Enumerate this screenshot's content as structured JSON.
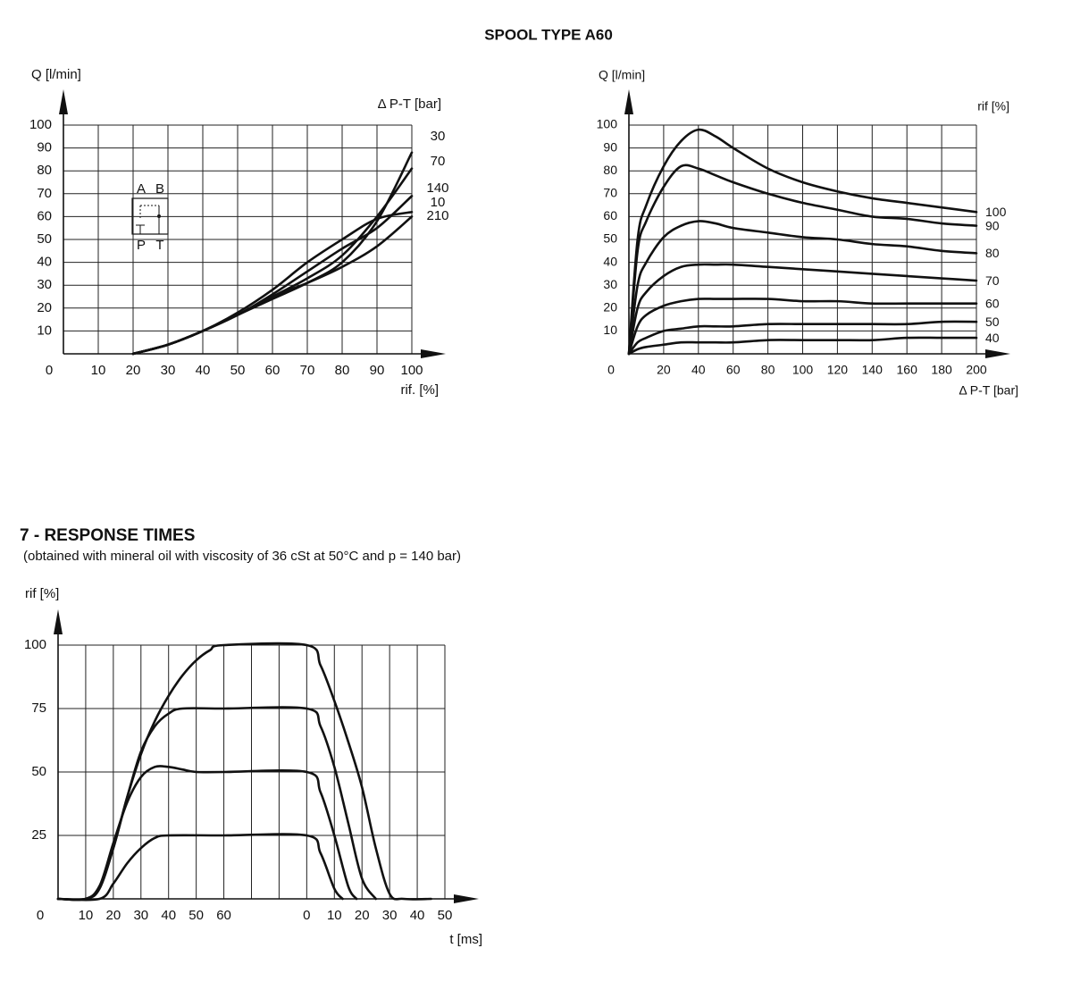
{
  "page": {
    "title": "SPOOL TYPE A60"
  },
  "chart_data": [
    {
      "type": "line",
      "y_label": "Q [l/min]",
      "x_label": "rif. [%]",
      "legend_title": "Δ P-T [bar]",
      "symbol_labels": [
        "A",
        "B",
        "P",
        "T"
      ],
      "xlim": [
        0,
        100
      ],
      "ylim": [
        0,
        100
      ],
      "xticks": [
        0,
        10,
        20,
        30,
        40,
        50,
        60,
        70,
        80,
        90,
        100
      ],
      "yticks": [
        10,
        20,
        30,
        40,
        50,
        60,
        70,
        80,
        90,
        100
      ],
      "grid": true,
      "x": [
        20,
        30,
        40,
        50,
        60,
        70,
        80,
        90,
        100
      ],
      "series": [
        {
          "name": "30",
          "color": "#111111",
          "values": [
            0,
            4,
            10,
            17,
            24,
            31,
            40,
            58,
            88
          ]
        },
        {
          "name": "70",
          "color": "#111111",
          "values": [
            0,
            4,
            10,
            17,
            25,
            33,
            43,
            60,
            81
          ]
        },
        {
          "name": "140",
          "color": "#111111",
          "values": [
            0,
            4,
            10,
            17,
            26,
            36,
            46,
            55,
            69
          ]
        },
        {
          "name": "10",
          "color": "#111111",
          "values": [
            0,
            4,
            10,
            18,
            28,
            40,
            50,
            59,
            62
          ]
        },
        {
          "name": "210",
          "color": "#111111",
          "values": [
            0,
            4,
            10,
            17,
            25,
            31,
            38,
            47,
            60
          ]
        }
      ]
    },
    {
      "type": "line",
      "y_label": "Q [l/min]",
      "x_label": "Δ P-T [bar]",
      "legend_title": "rif [%]",
      "xlim": [
        0,
        200
      ],
      "ylim": [
        0,
        100
      ],
      "xticks": [
        0,
        20,
        40,
        60,
        80,
        100,
        120,
        140,
        160,
        180,
        200
      ],
      "yticks": [
        10,
        20,
        30,
        40,
        50,
        60,
        70,
        80,
        90,
        100
      ],
      "grid": true,
      "x": [
        0,
        5,
        10,
        20,
        30,
        40,
        50,
        60,
        80,
        100,
        120,
        140,
        160,
        180,
        200
      ],
      "series": [
        {
          "name": "100",
          "color": "#111111",
          "values": [
            0,
            50,
            65,
            82,
            93,
            98,
            95,
            90,
            81,
            75,
            71,
            68,
            66,
            64,
            62
          ]
        },
        {
          "name": "90",
          "color": "#111111",
          "values": [
            0,
            45,
            58,
            73,
            82,
            81,
            78,
            75,
            70,
            66,
            63,
            60,
            59,
            57,
            56
          ]
        },
        {
          "name": "80",
          "color": "#111111",
          "values": [
            0,
            30,
            40,
            51,
            56,
            58,
            57,
            55,
            53,
            51,
            50,
            48,
            47,
            45,
            44
          ]
        },
        {
          "name": "70",
          "color": "#111111",
          "values": [
            0,
            20,
            27,
            34,
            38,
            39,
            39,
            39,
            38,
            37,
            36,
            35,
            34,
            33,
            32
          ]
        },
        {
          "name": "60",
          "color": "#111111",
          "values": [
            0,
            12,
            17,
            21,
            23,
            24,
            24,
            24,
            24,
            23,
            23,
            22,
            22,
            22,
            22
          ]
        },
        {
          "name": "50",
          "color": "#111111",
          "values": [
            0,
            5,
            7,
            10,
            11,
            12,
            12,
            12,
            13,
            13,
            13,
            13,
            13,
            14,
            14
          ]
        },
        {
          "name": "40",
          "color": "#111111",
          "values": [
            0,
            2,
            3,
            4,
            5,
            5,
            5,
            5,
            6,
            6,
            6,
            6,
            7,
            7,
            7
          ]
        }
      ]
    },
    {
      "type": "line",
      "title": "7 - RESPONSE TIMES",
      "subtitle": "(obtained with mineral oil with viscosity of 36 cSt at 50°C and p = 140 bar)",
      "y_label": "rif [%]",
      "x_label": "t [ms]",
      "xlim": [
        0,
        140
      ],
      "ylim": [
        0,
        100
      ],
      "xticks": [
        0,
        10,
        20,
        30,
        40,
        50,
        60,
        {
          "value": 90,
          "label": "0"
        },
        {
          "value": 100,
          "label": "10"
        },
        {
          "value": 110,
          "label": "20"
        },
        {
          "value": 120,
          "label": "30"
        },
        {
          "value": 130,
          "label": "40"
        },
        {
          "value": 140,
          "label": "50"
        }
      ],
      "yticks": [
        25,
        50,
        75,
        100
      ],
      "grid": true,
      "series": [
        {
          "color": "#111111",
          "x": [
            0,
            10,
            15,
            20,
            25,
            30,
            35,
            40,
            45,
            50,
            55,
            60,
            90,
            95,
            100,
            105,
            110,
            115,
            120,
            125,
            135
          ],
          "values": [
            0,
            0,
            5,
            20,
            40,
            57,
            70,
            80,
            88,
            94,
            98,
            100,
            100,
            92,
            78,
            62,
            44,
            20,
            2,
            0,
            0
          ]
        },
        {
          "color": "#111111",
          "x": [
            0,
            10,
            15,
            20,
            25,
            30,
            35,
            40,
            45,
            60,
            90,
            95,
            100,
            105,
            110,
            115
          ],
          "values": [
            0,
            0,
            4,
            20,
            40,
            58,
            68,
            73,
            75,
            75,
            75,
            68,
            52,
            30,
            8,
            0
          ]
        },
        {
          "color": "#111111",
          "x": [
            0,
            10,
            15,
            20,
            25,
            30,
            35,
            40,
            45,
            50,
            60,
            90,
            95,
            100,
            105,
            108
          ],
          "values": [
            0,
            0,
            5,
            22,
            38,
            48,
            52,
            52,
            51,
            50,
            50,
            50,
            42,
            25,
            5,
            0
          ]
        },
        {
          "color": "#111111",
          "x": [
            0,
            15,
            20,
            25,
            30,
            35,
            40,
            60,
            90,
            95,
            100,
            103
          ],
          "values": [
            0,
            0,
            6,
            14,
            20,
            24,
            25,
            25,
            25,
            18,
            4,
            0
          ]
        }
      ]
    }
  ]
}
